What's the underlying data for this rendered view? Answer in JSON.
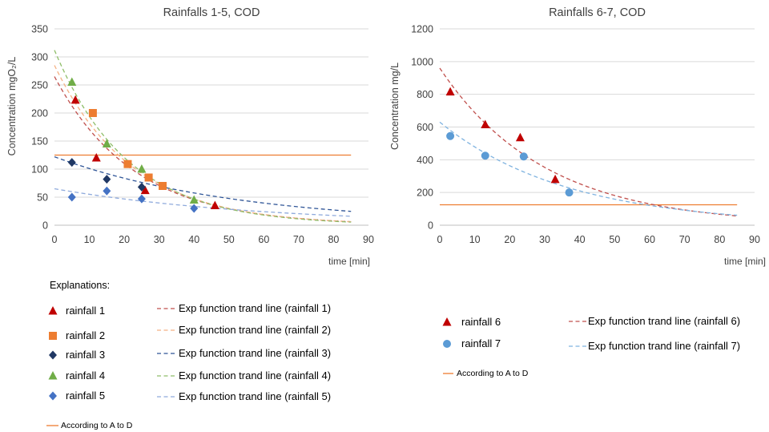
{
  "chart_data": [
    {
      "type": "scatter",
      "title": "Rainfalls 1-5, COD",
      "xlabel": "time [min]",
      "ylabel": "Concentration mgO₂/L",
      "xlim": [
        0,
        90
      ],
      "ylim": [
        0,
        350
      ],
      "xticks": [
        0,
        10,
        20,
        30,
        40,
        50,
        60,
        70,
        80,
        90
      ],
      "yticks": [
        0,
        50,
        100,
        150,
        200,
        250,
        300,
        350
      ],
      "grid": "horizontal",
      "legend_title": "Explanations:",
      "series": [
        {
          "name": "rainfall 1",
          "marker": "triangle",
          "color": "#c00000",
          "x": [
            6,
            12,
            26,
            46
          ],
          "y": [
            223,
            120,
            62,
            35
          ],
          "trend": {
            "name": "Exp function trand line (rainfall 1)",
            "a": 265,
            "b": 0.044,
            "x_range": [
              0,
              85
            ]
          }
        },
        {
          "name": "rainfall 2",
          "marker": "square",
          "color": "#ed7d31",
          "x": [
            11,
            21,
            27,
            31
          ],
          "y": [
            200,
            109,
            85,
            70
          ],
          "trend": {
            "name": "Exp function trand line (rainfall 2)",
            "a": 285,
            "b": 0.045,
            "x_range": [
              0,
              85
            ]
          }
        },
        {
          "name": "rainfall 3",
          "marker": "diamond",
          "color": "#203864",
          "x": [
            5,
            15,
            25
          ],
          "y": [
            112,
            82,
            68
          ],
          "trend": {
            "name": "Exp function trand line (rainfall 3)",
            "a": 122,
            "b": 0.0188,
            "x_range": [
              0,
              85
            ]
          }
        },
        {
          "name": "rainfall 4",
          "marker": "triangle",
          "color": "#70ad47",
          "x": [
            5,
            15,
            25,
            40
          ],
          "y": [
            255,
            145,
            100,
            45
          ],
          "trend": {
            "name": "Exp function trand line (rainfall 4)",
            "a": 312,
            "b": 0.0475,
            "x_range": [
              0,
              85
            ]
          }
        },
        {
          "name": "rainfall 5",
          "marker": "diamond",
          "color": "#4472c4",
          "x": [
            5,
            15,
            25,
            40
          ],
          "y": [
            50,
            61,
            47,
            30
          ],
          "trend": {
            "name": "Exp function trand line (rainfall 5)",
            "a": 65,
            "b": 0.0165,
            "x_range": [
              0,
              85
            ]
          }
        }
      ],
      "reference_line": {
        "name": "According to A to D",
        "y": 125,
        "x_range": [
          0,
          85
        ],
        "color": "#ed7d31"
      }
    },
    {
      "type": "scatter",
      "title": "Rainfalls 6-7, COD",
      "xlabel": "time [min]",
      "ylabel": "Concentration mg/L",
      "xlim": [
        0,
        90
      ],
      "ylim": [
        0,
        1200
      ],
      "xticks": [
        0,
        10,
        20,
        30,
        40,
        50,
        60,
        70,
        80,
        90
      ],
      "yticks": [
        0,
        200,
        400,
        600,
        800,
        1000,
        1200
      ],
      "grid": "horizontal",
      "series": [
        {
          "name": "rainfall 6",
          "marker": "triangle",
          "color": "#c00000",
          "x": [
            3,
            13,
            23,
            33
          ],
          "y": [
            815,
            615,
            535,
            280
          ],
          "trend": {
            "name": "Exp function trand line (rainfall 6)",
            "a": 960,
            "b": 0.0333,
            "x_range": [
              0,
              85
            ]
          }
        },
        {
          "name": "rainfall 7",
          "marker": "circle",
          "color": "#5b9bd5",
          "x": [
            3,
            13,
            24,
            37
          ],
          "y": [
            545,
            425,
            420,
            200
          ],
          "trend": {
            "name": "Exp function trand line (rainfall 7)",
            "a": 630,
            "b": 0.0275,
            "x_range": [
              0,
              85
            ]
          }
        }
      ],
      "reference_line": {
        "name": "According to A to D",
        "y": 125,
        "x_range": [
          0,
          85
        ],
        "color": "#ed7d31"
      }
    }
  ]
}
